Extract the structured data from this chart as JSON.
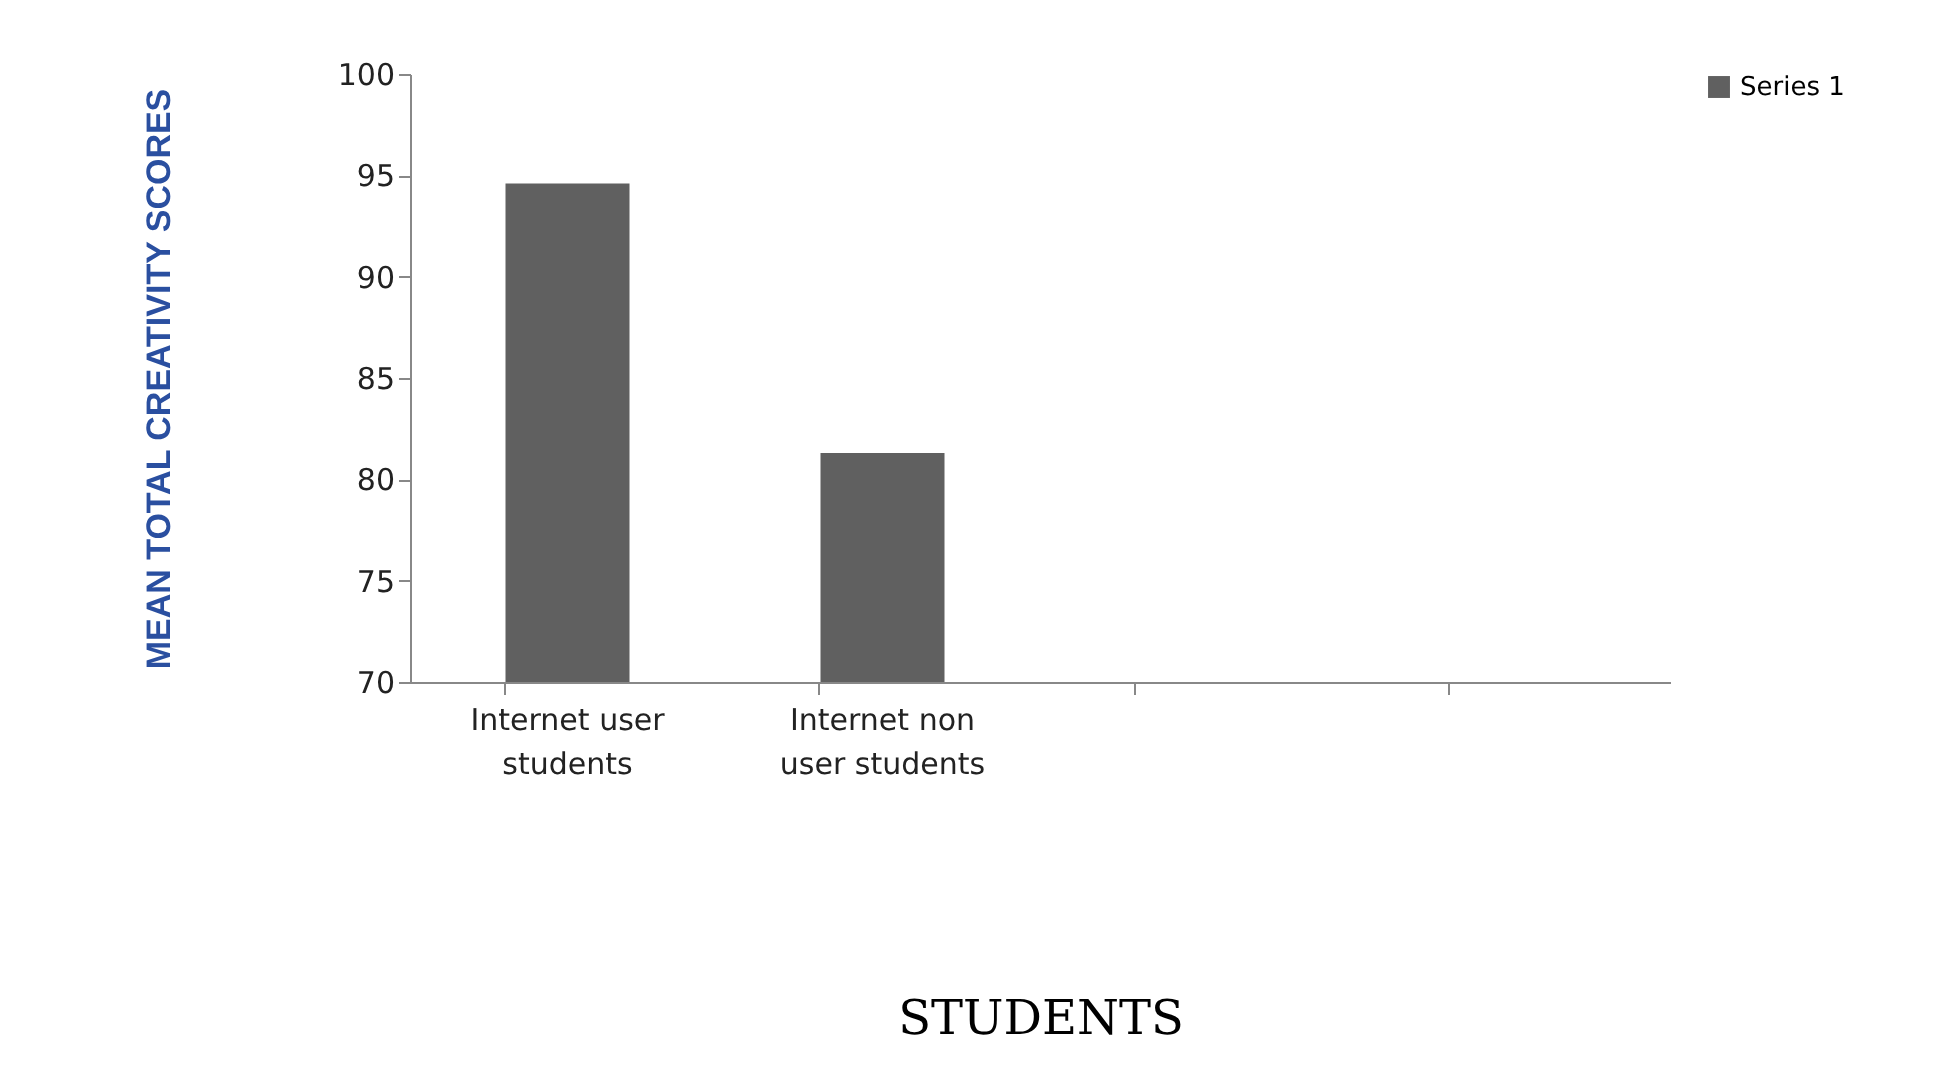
{
  "chart_data": {
    "type": "bar",
    "xlabel": "STUDENTS",
    "ylabel": "MEAN TOTAL CREATIVITY SCORES",
    "categories": [
      "Internet user students",
      "Internet non user students",
      null,
      null
    ],
    "series": [
      {
        "name": "Series 1",
        "color": "#606060",
        "values": [
          94.6,
          81.3,
          null,
          null
        ]
      }
    ],
    "ylim": [
      70,
      100
    ],
    "yticks": [
      70,
      75,
      80,
      85,
      90,
      95,
      100
    ],
    "grid": false,
    "legend": "right"
  }
}
